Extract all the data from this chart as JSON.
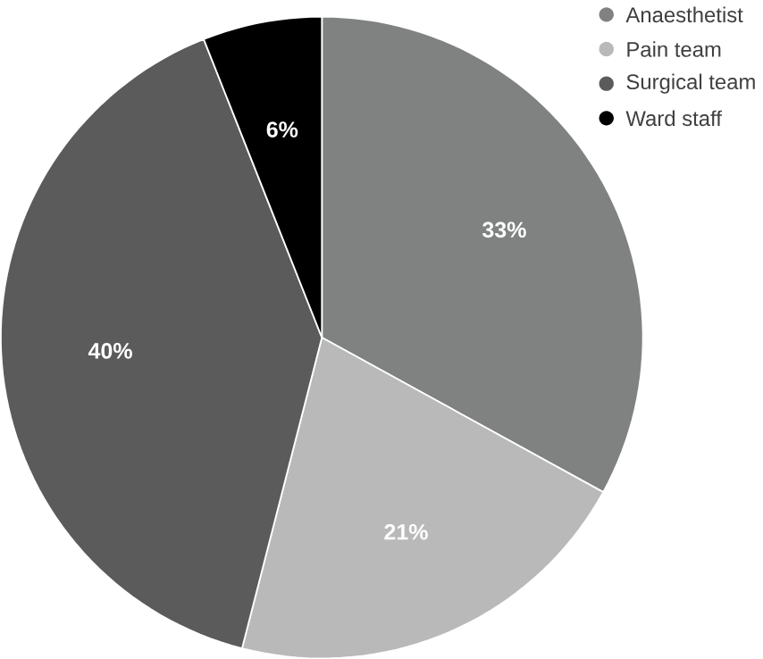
{
  "chart_data": {
    "type": "pie",
    "categories": [
      "Anaesthetist",
      "Pain team",
      "Surgical team",
      "Ward staff"
    ],
    "values": [
      33,
      21,
      40,
      6
    ],
    "value_labels": [
      "33%",
      "21%",
      "40%",
      "6%"
    ],
    "colors": [
      "#808282",
      "#b9b9b9",
      "#5b5b5b",
      "#000000"
    ],
    "legend": "top right"
  }
}
